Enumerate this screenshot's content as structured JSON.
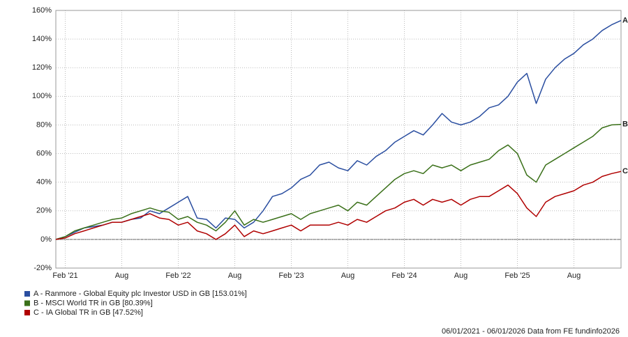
{
  "chart_data": {
    "type": "line",
    "categories": [
      null,
      "Feb '21",
      null,
      null,
      null,
      null,
      null,
      "Aug",
      null,
      null,
      null,
      null,
      null,
      "Feb '22",
      null,
      null,
      null,
      null,
      null,
      "Aug",
      null,
      null,
      null,
      null,
      null,
      "Feb '23",
      null,
      null,
      null,
      null,
      null,
      "Aug",
      null,
      null,
      null,
      null,
      null,
      "Feb '24",
      null,
      null,
      null,
      null,
      null,
      "Aug",
      null,
      null,
      null,
      null,
      null,
      "Feb '25",
      null,
      null,
      null,
      null,
      null,
      "Aug",
      null,
      null,
      null,
      null,
      null
    ],
    "series": [
      {
        "name": "A - Ranmore - Global Equity plc Investor USD in GB [153.01%]",
        "end_label": "A",
        "color": "#2a4ea0",
        "values": [
          0,
          2,
          5,
          8,
          9,
          10,
          12,
          12,
          14,
          15,
          20,
          18,
          22,
          26,
          30,
          15,
          14,
          8,
          15,
          14,
          8,
          12,
          20,
          30,
          32,
          36,
          42,
          45,
          52,
          54,
          50,
          48,
          55,
          52,
          58,
          62,
          68,
          72,
          76,
          73,
          80,
          88,
          82,
          80,
          82,
          86,
          92,
          94,
          100,
          110,
          116,
          95,
          112,
          120,
          126,
          130,
          136,
          140,
          146,
          150,
          153.01
        ]
      },
      {
        "name": "B - MSCI World TR in GB [80.39%]",
        "end_label": "B",
        "color": "#3a7019",
        "values": [
          0,
          2,
          6,
          8,
          10,
          12,
          14,
          15,
          18,
          20,
          22,
          20,
          19,
          14,
          16,
          12,
          10,
          6,
          12,
          20,
          10,
          14,
          12,
          14,
          16,
          18,
          14,
          18,
          20,
          22,
          24,
          20,
          26,
          24,
          30,
          36,
          42,
          46,
          48,
          46,
          52,
          50,
          52,
          48,
          52,
          54,
          56,
          62,
          66,
          60,
          45,
          40,
          52,
          56,
          60,
          64,
          68,
          72,
          78,
          80,
          80.39
        ]
      },
      {
        "name": "C - IA Global TR in GB [47.52%]",
        "end_label": "C",
        "color": "#b00000",
        "values": [
          0,
          1,
          4,
          6,
          8,
          10,
          12,
          12,
          14,
          16,
          18,
          15,
          14,
          10,
          12,
          6,
          4,
          0,
          4,
          10,
          2,
          6,
          4,
          6,
          8,
          10,
          6,
          10,
          10,
          10,
          12,
          10,
          14,
          12,
          16,
          20,
          22,
          26,
          28,
          24,
          28,
          26,
          28,
          24,
          28,
          30,
          30,
          34,
          38,
          32,
          22,
          16,
          26,
          30,
          32,
          34,
          38,
          40,
          44,
          46,
          47.52
        ]
      }
    ],
    "ylim": [
      -20,
      160
    ],
    "yticks": [
      {
        "value": -20,
        "label": "-20%"
      },
      {
        "value": 0,
        "label": "0%"
      },
      {
        "value": 20,
        "label": "20%"
      },
      {
        "value": 40,
        "label": "40%"
      },
      {
        "value": 60,
        "label": "60%"
      },
      {
        "value": 80,
        "label": "80%"
      },
      {
        "value": 100,
        "label": "100%"
      },
      {
        "value": 120,
        "label": "120%"
      },
      {
        "value": 140,
        "label": "140%"
      },
      {
        "value": 160,
        "label": "160%"
      }
    ],
    "grid": true,
    "footer": "06/01/2021 - 06/01/2026 Data from FE fundinfo2026"
  }
}
